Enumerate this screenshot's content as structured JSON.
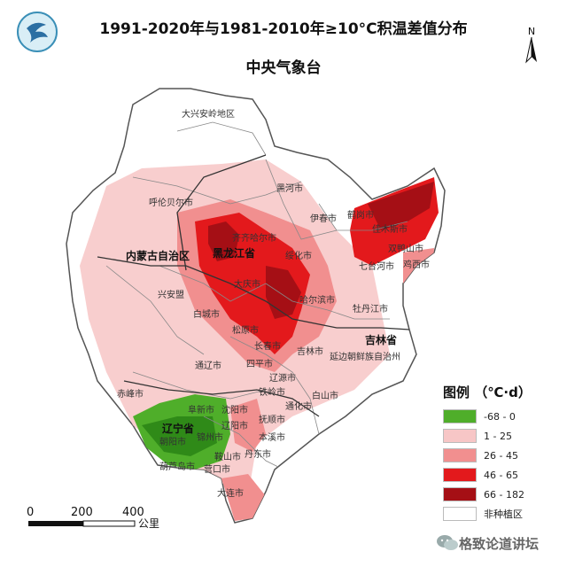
{
  "header": {
    "title": "1991-2020年与1981-2010年≥10°C积温差值分布",
    "subtitle": "中央气象台"
  },
  "legend": {
    "title": "图例 （℃·d）",
    "items": [
      {
        "label": "-68 - 0",
        "color": "#4fae2a"
      },
      {
        "label": "1 - 25",
        "color": "#f7c6c6"
      },
      {
        "label": "26 - 45",
        "color": "#f18f8f"
      },
      {
        "label": "46 - 65",
        "color": "#e3191c"
      },
      {
        "label": "66 - 182",
        "color": "#a50f15"
      },
      {
        "label": "非种植区",
        "color": "#ffffff"
      }
    ]
  },
  "scalebar": {
    "ticks": [
      "0",
      "200",
      "400"
    ],
    "unit": "公里"
  },
  "north_arrow": {
    "label": "N"
  },
  "watermark": {
    "text": "格致论道讲坛",
    "icon": "wechat-icon"
  },
  "logo": {
    "icon": "cma-logo-icon"
  },
  "map": {
    "labels": {
      "daxinganling": "大兴安岭地区",
      "hulunbeier": "呼伦贝尔市",
      "heihe": "黑河市",
      "yichun": "伊春市",
      "hegang": "鹤岗市",
      "jiamusi": "佳木斯市",
      "shuangyashan": "双鸭山市",
      "qitaihe": "七台河市",
      "jixi": "鸡西市",
      "qiqihar": "齐齐哈尔市",
      "heilongjiang": "黑龙江省",
      "suihua": "绥化市",
      "daqing": "大庆市",
      "harbin": "哈尔滨市",
      "mudanjiang": "牡丹江市",
      "neimenggu": "内蒙古自治区",
      "xinganmeng": "兴安盟",
      "baicheng": "白城市",
      "songyuan": "松原市",
      "changchun": "长春市",
      "jilin_city": "吉林市",
      "jilin_prov": "吉林省",
      "yanbian": "延边朝鲜族自治州",
      "tongliao": "通辽市",
      "siping": "四平市",
      "liaoyuan": "辽源市",
      "tieling": "铁岭市",
      "tonghua": "通化市",
      "baishan": "白山市",
      "chifeng": "赤峰市",
      "fuxin": "阜新市",
      "shenyang": "沈阳市",
      "fushun": "抚顺市",
      "liaoning": "辽宁省",
      "liaoyang": "辽阳市",
      "benxi": "本溪市",
      "chaoyang": "朝阳市",
      "jinzhou": "锦州市",
      "anshan": "鞍山市",
      "dandong": "丹东市",
      "huludao": "葫芦岛市",
      "yingkou": "营口市",
      "dalian": "大连市"
    }
  }
}
